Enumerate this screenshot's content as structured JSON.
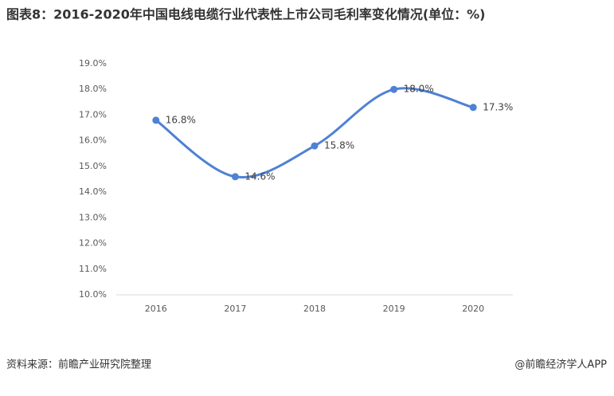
{
  "chart_data": {
    "type": "line",
    "title": "图表8：2016-2020年中国电线电缆行业代表性上市公司毛利率变化情况(单位：%)",
    "categories": [
      "2016",
      "2017",
      "2018",
      "2019",
      "2020"
    ],
    "values": [
      16.8,
      14.6,
      15.8,
      18.0,
      17.3
    ],
    "value_labels": [
      "16.8%",
      "14.6%",
      "15.8%",
      "18.0%",
      "17.3%"
    ],
    "color": "#4f81d4",
    "ylim": [
      10,
      19
    ],
    "yticks": [
      {
        "value": 10,
        "label": "10.0%"
      },
      {
        "value": 11,
        "label": "11.0%"
      },
      {
        "value": 12,
        "label": "12.0%"
      },
      {
        "value": 13,
        "label": "13.0%"
      },
      {
        "value": 14,
        "label": "14.0%"
      },
      {
        "value": 15,
        "label": "15.0%"
      },
      {
        "value": 16,
        "label": "16.0%"
      },
      {
        "value": 17,
        "label": "17.0%"
      },
      {
        "value": 18,
        "label": "18.0%"
      },
      {
        "value": 19,
        "label": "19.0%"
      }
    ],
    "source": "资料来源：前瞻产业研究院整理",
    "credit": "@前瞻经济学人APP"
  }
}
